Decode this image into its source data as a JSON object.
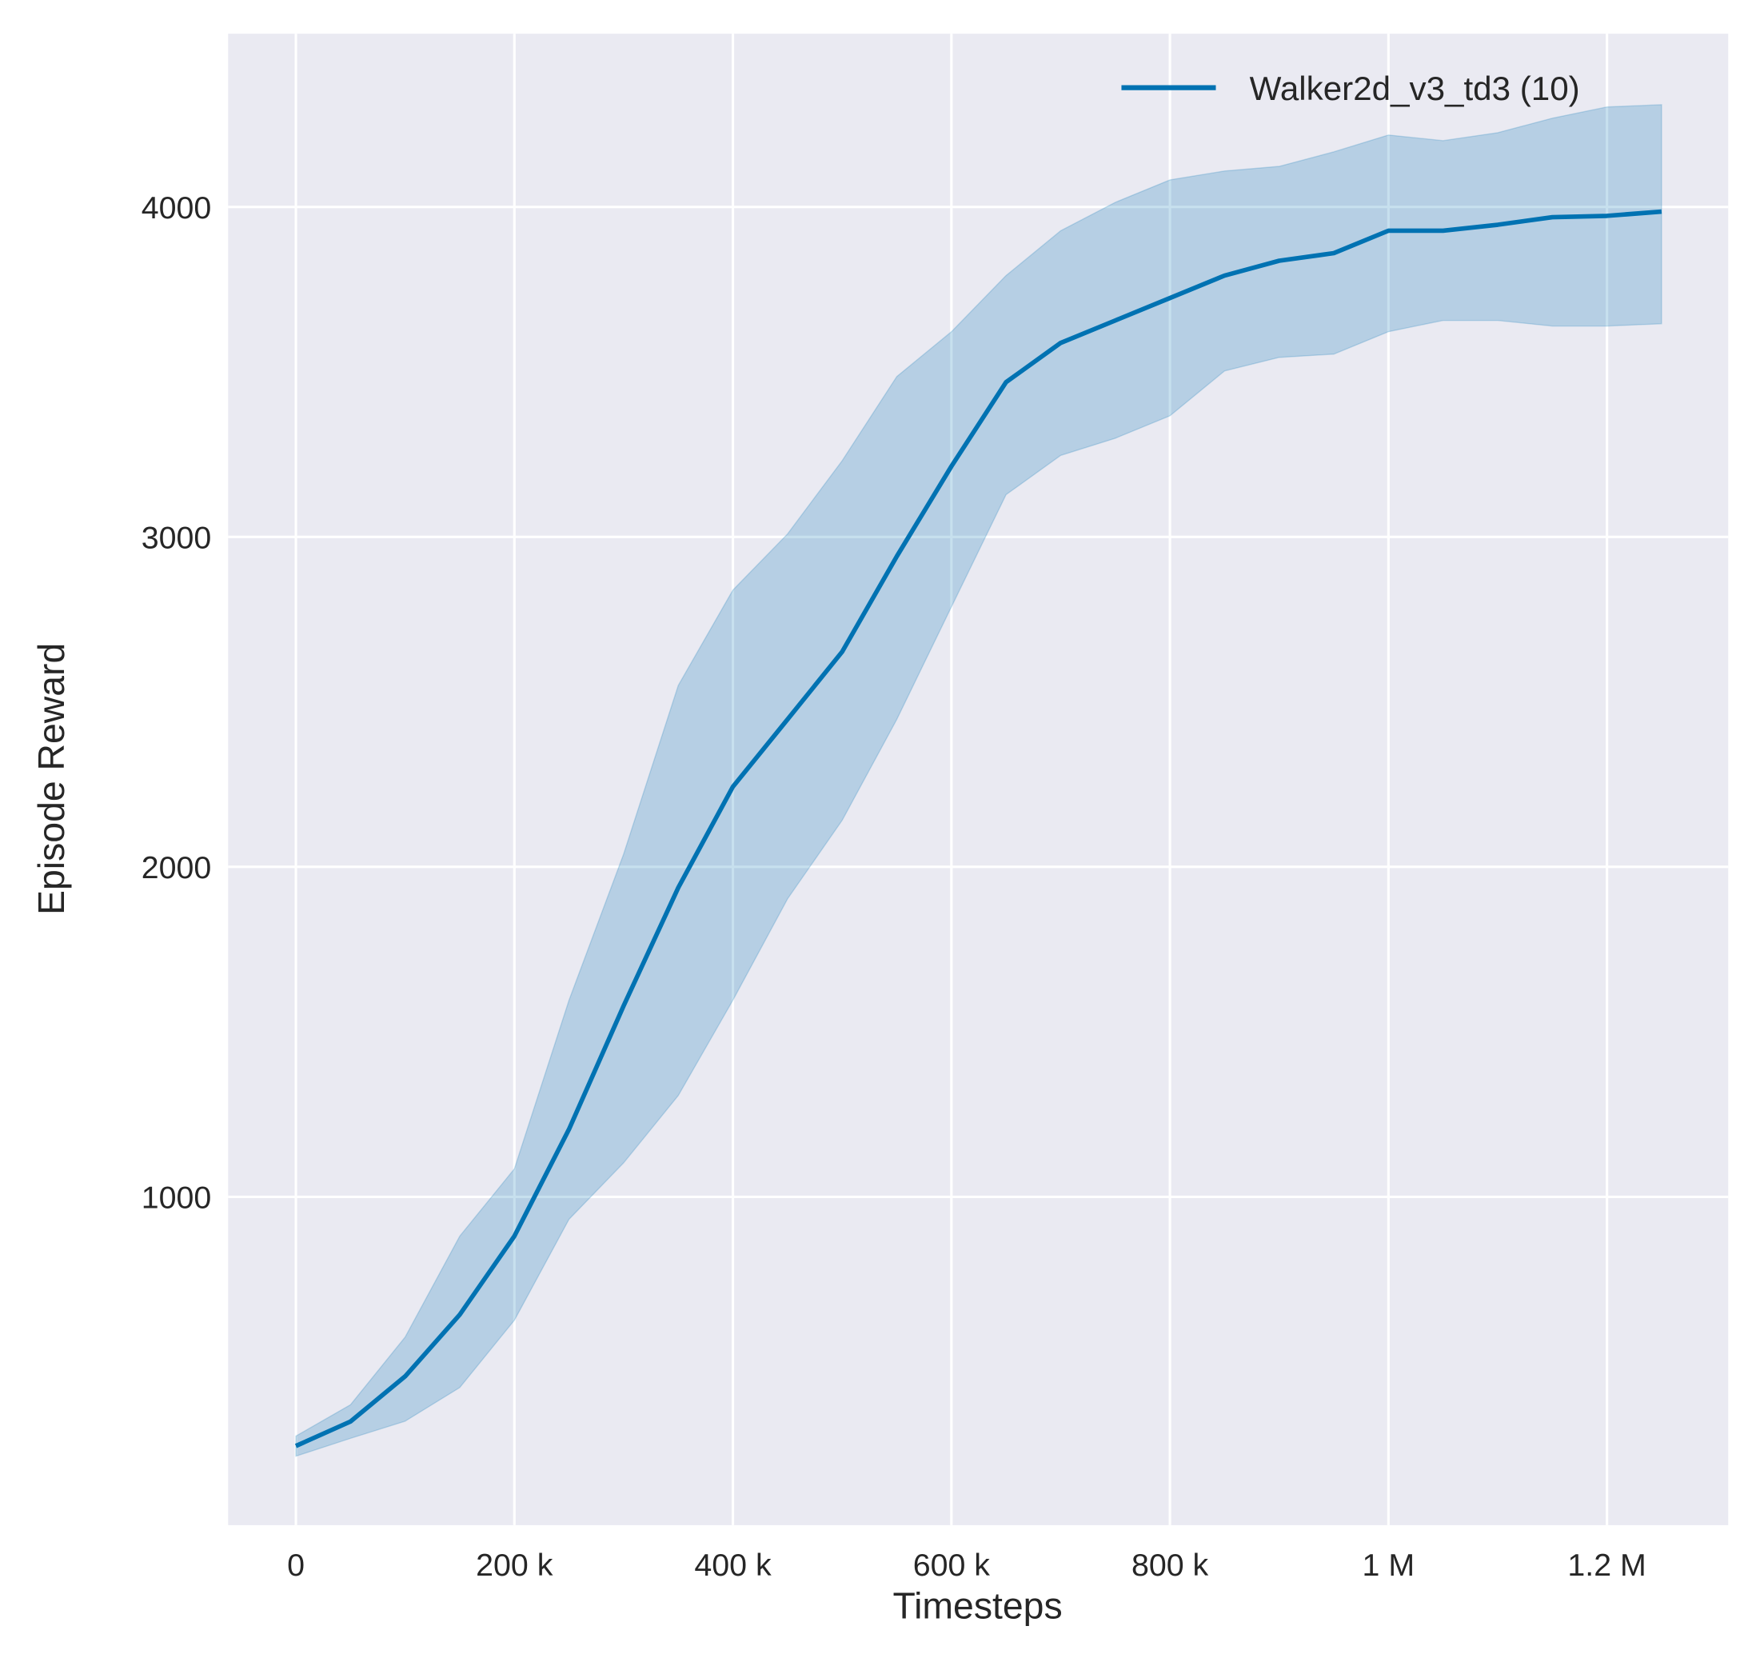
{
  "chart_data": {
    "type": "line",
    "title": "",
    "xlabel": "Timesteps",
    "ylabel": "Episode Reward",
    "xlim": [
      -62000,
      1311000
    ],
    "ylim": [
      5,
      4525
    ],
    "grid": true,
    "legend_placement": "top-right",
    "x_ticks": [
      0,
      200000,
      400000,
      600000,
      800000,
      1000000,
      1200000
    ],
    "x_tick_labels": [
      "0",
      "200 k",
      "400 k",
      "600 k",
      "800 k",
      "1 M",
      "1.2 M"
    ],
    "y_ticks": [
      1000,
      2000,
      3000,
      4000
    ],
    "y_tick_labels": [
      "1000",
      "2000",
      "3000",
      "4000"
    ],
    "colors": {
      "background": "#eaeaf2",
      "grid": "#ffffff",
      "line": "#0072b2",
      "band": "#0072b2"
    },
    "series": [
      {
        "name": "Walker2d_v3_td3 (10)",
        "x": [
          0,
          50000,
          100000,
          150000,
          200000,
          250000,
          300000,
          350000,
          400000,
          450000,
          500000,
          550000,
          600000,
          650000,
          700000,
          750000,
          800000,
          850000,
          900000,
          950000,
          1000000,
          1050000,
          1100000,
          1150000,
          1200000,
          1250000
        ],
        "mean": [
          245,
          319,
          456,
          643,
          881,
          1205,
          1579,
          1937,
          2243,
          2447,
          2652,
          2941,
          3214,
          3469,
          3588,
          3656,
          3724,
          3792,
          3837,
          3860,
          3928,
          3928,
          3946,
          3969,
          3973,
          3986
        ],
        "upper": [
          275,
          370,
          575,
          881,
          1085,
          1596,
          2039,
          2550,
          2839,
          3009,
          3231,
          3486,
          3622,
          3792,
          3928,
          4014,
          4082,
          4109,
          4123,
          4167,
          4218,
          4201,
          4225,
          4269,
          4303,
          4310
        ],
        "lower": [
          214,
          268,
          320,
          422,
          626,
          932,
          1103,
          1307,
          1596,
          1903,
          2141,
          2447,
          2788,
          3128,
          3247,
          3299,
          3367,
          3503,
          3544,
          3554,
          3622,
          3656,
          3656,
          3639,
          3639,
          3646
        ]
      }
    ]
  }
}
